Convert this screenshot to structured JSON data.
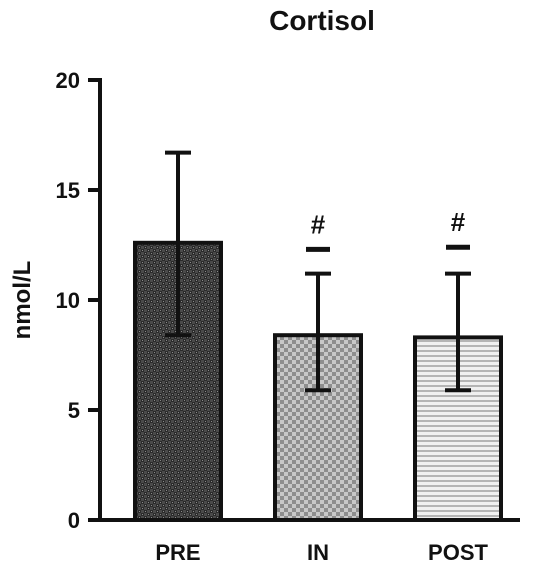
{
  "chart_data": {
    "type": "bar",
    "title": "Cortisol",
    "ylabel": "nmol/L",
    "xlabel": "",
    "ylim": [
      0,
      20
    ],
    "yticks": [
      0,
      5,
      10,
      15,
      20
    ],
    "grid": false,
    "categories": [
      "PRE",
      "IN",
      "POST"
    ],
    "values": [
      12.6,
      8.4,
      8.3
    ],
    "error_upper": [
      16.7,
      11.2,
      11.2
    ],
    "error_lower": [
      8.4,
      5.9,
      5.9
    ],
    "annotations": [
      "",
      "#",
      "#"
    ],
    "annotation_bar_value": [
      null,
      12.3,
      12.4
    ],
    "patterns": [
      "dark-crosshatch",
      "light-checker",
      "horizontal-lines"
    ]
  }
}
